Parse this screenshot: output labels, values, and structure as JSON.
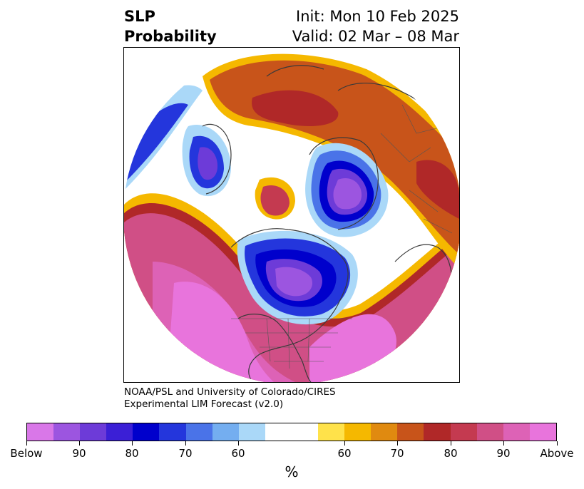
{
  "title": {
    "left_line1": "SLP",
    "left_line2": "Probability",
    "right_line1": "Init: Mon 10 Feb 2025",
    "right_line2": "Valid: 02 Mar – 08 Mar"
  },
  "credit": {
    "line1": "NOAA/PSL and University of Colorado/CIRES",
    "line2": "Experimental LIM Forecast (v2.0)"
  },
  "colorbar": {
    "segments": [
      "#d977e8",
      "#9c55e0",
      "#6d3bd8",
      "#3b1fd6",
      "#0000cc",
      "#2436dc",
      "#4a73e8",
      "#74aef0",
      "#aad8f8",
      "#ffffff",
      "#ffffff",
      "#ffe24a",
      "#f5b800",
      "#e08a10",
      "#c8541a",
      "#b02828",
      "#c43a50",
      "#d04f86",
      "#dd62b6",
      "#e874dc"
    ],
    "tick_labels": [
      "Below",
      "90",
      "80",
      "70",
      "60",
      "60",
      "70",
      "80",
      "90",
      "Above"
    ],
    "unit": "%"
  },
  "map": {
    "projection": "north-polar-stereographic",
    "variable": "sea level pressure tercile probability",
    "features": [
      "coastlines",
      "country-borders",
      "us-state-borders",
      "canada-province-borders"
    ]
  }
}
